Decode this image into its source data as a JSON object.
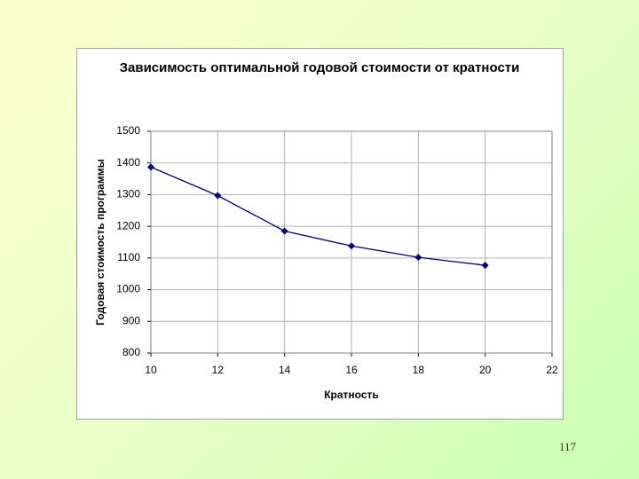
{
  "chart_data": {
    "type": "line",
    "title": "Зависимость оптимальной годовой стоимости от кратности",
    "x_label": "Кратность",
    "y_label": "Годовая стоимость программы",
    "x": [
      10,
      12,
      14,
      16,
      18,
      20
    ],
    "series": [
      {
        "color": "#000080",
        "values": [
          1387,
          1297,
          1185,
          1138,
          1102,
          1077
        ]
      }
    ],
    "xlim": [
      10,
      22
    ],
    "xticks": [
      10,
      12,
      14,
      16,
      18,
      20,
      22
    ],
    "ylim": [
      800,
      1500
    ],
    "yticks": [
      800,
      900,
      1000,
      1100,
      1200,
      1300,
      1400,
      1500
    ],
    "grid": true
  },
  "slide": {
    "page_number": "117"
  }
}
